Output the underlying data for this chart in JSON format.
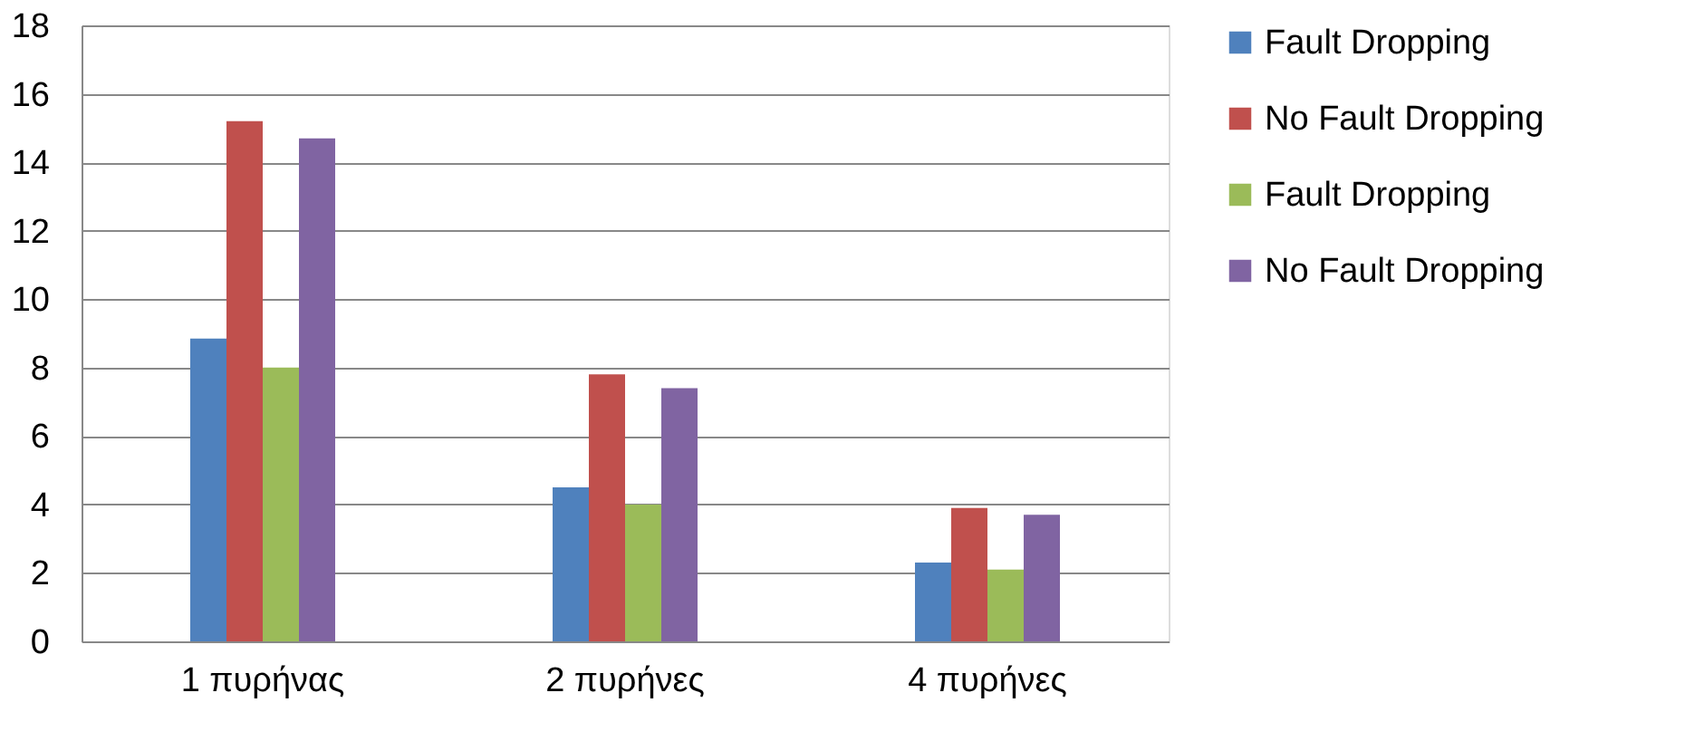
{
  "chart_data": {
    "type": "bar",
    "categories": [
      "1 πυρήνας",
      "2 πυρήνες",
      "4 πυρήνες"
    ],
    "series": [
      {
        "name": "Fault Dropping",
        "color": "#4f81bd",
        "values": [
          8.85,
          4.5,
          2.3
        ]
      },
      {
        "name": "No Fault Dropping",
        "color": "#c0504d",
        "values": [
          15.2,
          7.8,
          3.9
        ]
      },
      {
        "name": "Fault Dropping",
        "color": "#9bbb59",
        "values": [
          8.0,
          4.0,
          2.1
        ]
      },
      {
        "name": "No Fault Dropping",
        "color": "#8064a2",
        "values": [
          14.7,
          7.4,
          3.7
        ]
      }
    ],
    "ylim": [
      0,
      18
    ],
    "yticks": [
      0,
      2,
      4,
      6,
      8,
      10,
      12,
      14,
      16,
      18
    ],
    "grid": "y",
    "legend": "right"
  }
}
